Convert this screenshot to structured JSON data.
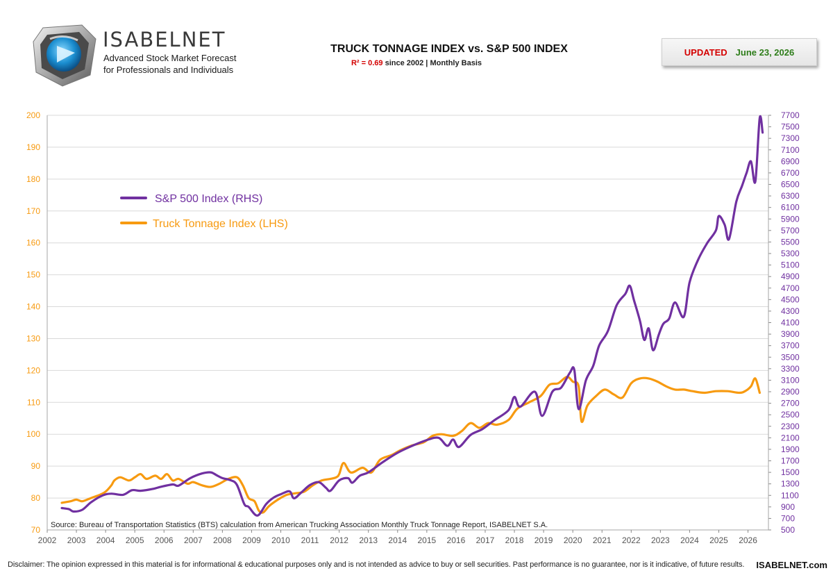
{
  "header": {
    "brand_name": "ISABELNET",
    "brand_tagline_1": "Advanced Stock Market Forecast",
    "brand_tagline_2": "for Professionals and Individuals",
    "updated_label": "UPDATED",
    "updated_date": "June 23, 2026"
  },
  "footer": {
    "disclaimer": "Disclaimer: The opinion expressed in this material is for informational & educational purposes only and is not intended as advice to buy or sell securities. Past performance is no guarantee, nor is it indicative, of future results.",
    "site": "ISABELNET.com"
  },
  "colors": {
    "sp500": "#7030a0",
    "tonnage": "#f79a10",
    "grid": "#d9d9d9",
    "r2": "#d40000",
    "updated_date": "#2e7d1a"
  },
  "chart_data": {
    "type": "line",
    "title": "TRUCK TONNAGE INDEX vs. S&P 500 INDEX",
    "subtitle_r2": "R² = 0.69",
    "subtitle_rest": "since 2002 | Monthly Basis",
    "source": "Source: Bureau of Transportation Statistics (BTS) calculation from American Trucking Association Monthly Truck Tonnage Report, ISABELNET S.A.",
    "x_range": [
      2002,
      2026.7
    ],
    "x_ticks": [
      "2002",
      "2003",
      "2004",
      "2005",
      "2006",
      "2007",
      "2008",
      "2009",
      "2010",
      "2011",
      "2012",
      "2013",
      "2014",
      "2015",
      "2016",
      "2017",
      "2018",
      "2019",
      "2020",
      "2021",
      "2022",
      "2023",
      "2024",
      "2025",
      "2026"
    ],
    "y_left": {
      "range": [
        70,
        200
      ],
      "ticks": [
        "70",
        "80",
        "90",
        "100",
        "110",
        "120",
        "130",
        "140",
        "150",
        "160",
        "170",
        "180",
        "190",
        "200"
      ]
    },
    "y_right": {
      "range": [
        500,
        7700
      ],
      "ticks": [
        "500",
        "700",
        "900",
        "1100",
        "1300",
        "1500",
        "1700",
        "1900",
        "2100",
        "2300",
        "2500",
        "2700",
        "2900",
        "3100",
        "3300",
        "3500",
        "3700",
        "3900",
        "4100",
        "4300",
        "4500",
        "4700",
        "4900",
        "5100",
        "5300",
        "5500",
        "5700",
        "5900",
        "6100",
        "6300",
        "6500",
        "6700",
        "6900",
        "7100",
        "7300",
        "7500",
        "7700"
      ]
    },
    "grid": true,
    "legend_position": "top-left",
    "series": [
      {
        "name": "S&P 500 Index (RHS)",
        "axis": "right",
        "x": [
          2002.5,
          2002.75,
          2002.9,
          2003.2,
          2003.5,
          2003.9,
          2004.2,
          2004.6,
          2004.9,
          2005.2,
          2005.6,
          2005.9,
          2006.3,
          2006.5,
          2006.9,
          2007.3,
          2007.6,
          2007.8,
          2008.0,
          2008.3,
          2008.5,
          2008.75,
          2008.9,
          2009.2,
          2009.5,
          2009.75,
          2010.0,
          2010.3,
          2010.45,
          2010.7,
          2011.0,
          2011.3,
          2011.55,
          2011.7,
          2012.0,
          2012.3,
          2012.45,
          2012.7,
          2013.0,
          2013.5,
          2014.0,
          2014.5,
          2015.0,
          2015.4,
          2015.7,
          2015.9,
          2016.1,
          2016.5,
          2016.9,
          2017.3,
          2017.8,
          2018.0,
          2018.2,
          2018.7,
          2018.95,
          2019.3,
          2019.6,
          2019.9,
          2020.05,
          2020.2,
          2020.45,
          2020.7,
          2020.9,
          2021.2,
          2021.5,
          2021.8,
          2021.95,
          2022.1,
          2022.3,
          2022.45,
          2022.6,
          2022.75,
          2022.95,
          2023.1,
          2023.3,
          2023.5,
          2023.8,
          2024.0,
          2024.3,
          2024.6,
          2024.9,
          2025.0,
          2025.2,
          2025.35,
          2025.6,
          2025.8,
          2025.95,
          2026.1,
          2026.25,
          2026.4,
          2026.5
        ],
        "values": [
          880,
          860,
          820,
          850,
          980,
          1100,
          1130,
          1110,
          1190,
          1180,
          1210,
          1250,
          1290,
          1270,
          1400,
          1480,
          1500,
          1450,
          1400,
          1360,
          1280,
          950,
          900,
          750,
          950,
          1060,
          1120,
          1170,
          1050,
          1150,
          1280,
          1330,
          1230,
          1180,
          1360,
          1400,
          1320,
          1440,
          1500,
          1680,
          1840,
          1960,
          2060,
          2100,
          1960,
          2070,
          1940,
          2150,
          2250,
          2400,
          2580,
          2810,
          2640,
          2900,
          2480,
          2900,
          2970,
          3230,
          3280,
          2600,
          3100,
          3350,
          3700,
          3950,
          4400,
          4600,
          4740,
          4480,
          4130,
          3800,
          4000,
          3620,
          3900,
          4080,
          4170,
          4450,
          4200,
          4800,
          5200,
          5480,
          5700,
          5950,
          5800,
          5550,
          6200,
          6480,
          6700,
          6900,
          6550,
          7650,
          7400
        ]
      },
      {
        "name": "Truck Tonnage Index (LHS)",
        "axis": "left",
        "x": [
          2002.5,
          2002.8,
          2003.0,
          2003.2,
          2003.5,
          2003.8,
          2004.0,
          2004.2,
          2004.3,
          2004.5,
          2004.8,
          2005.0,
          2005.2,
          2005.4,
          2005.7,
          2005.9,
          2006.1,
          2006.3,
          2006.5,
          2006.8,
          2007.0,
          2007.3,
          2007.6,
          2007.9,
          2008.2,
          2008.5,
          2008.7,
          2008.9,
          2009.1,
          2009.25,
          2009.4,
          2009.6,
          2009.9,
          2010.2,
          2010.5,
          2010.8,
          2011.1,
          2011.4,
          2011.7,
          2011.9,
          2012.0,
          2012.15,
          2012.4,
          2012.8,
          2013.1,
          2013.4,
          2013.8,
          2014.1,
          2014.5,
          2014.9,
          2015.2,
          2015.5,
          2015.9,
          2016.2,
          2016.5,
          2016.8,
          2017.1,
          2017.4,
          2017.8,
          2018.1,
          2018.5,
          2018.9,
          2019.2,
          2019.5,
          2019.8,
          2020.0,
          2020.2,
          2020.3,
          2020.5,
          2020.8,
          2021.1,
          2021.4,
          2021.7,
          2022.0,
          2022.3,
          2022.6,
          2022.9,
          2023.2,
          2023.5,
          2023.8,
          2024.1,
          2024.5,
          2024.9,
          2025.3,
          2025.7,
          2025.9,
          2026.1,
          2026.25,
          2026.4
        ],
        "values": [
          78.5,
          79.0,
          79.5,
          79.0,
          80.0,
          81.0,
          82.0,
          84.0,
          85.5,
          86.5,
          85.5,
          86.5,
          87.5,
          86.0,
          87.0,
          86.0,
          87.5,
          85.5,
          86.0,
          84.5,
          85.0,
          84.0,
          83.5,
          84.5,
          86.0,
          86.5,
          84.0,
          80.0,
          79.0,
          76.0,
          75.5,
          77.5,
          79.5,
          81.0,
          81.5,
          82.0,
          84.0,
          85.5,
          86.0,
          86.5,
          87.5,
          91.0,
          88.0,
          89.5,
          88.0,
          92.0,
          93.5,
          95.0,
          96.5,
          97.5,
          99.5,
          100.0,
          99.5,
          101.0,
          103.5,
          102.0,
          103.5,
          103.0,
          104.5,
          108.0,
          110.0,
          112.0,
          115.5,
          116.0,
          118.0,
          116.5,
          115.0,
          104.0,
          109.0,
          112.0,
          114.0,
          112.5,
          111.5,
          116.0,
          117.5,
          117.5,
          116.5,
          115.0,
          114.0,
          114.0,
          113.5,
          113.0,
          113.5,
          113.5,
          113.0,
          113.5,
          115.0,
          117.5,
          113.0
        ]
      }
    ]
  }
}
